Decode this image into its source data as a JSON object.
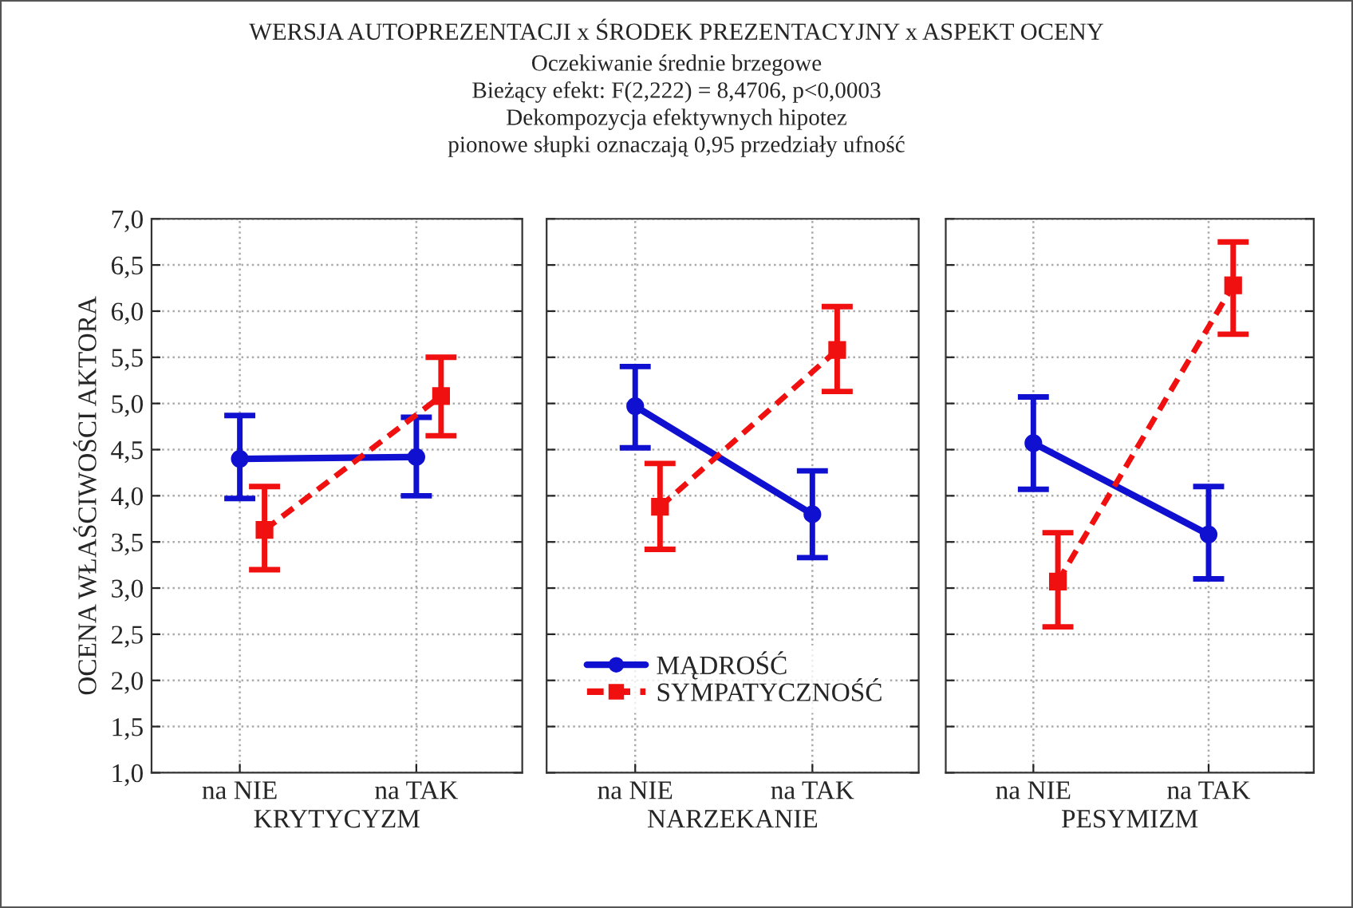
{
  "chart_data": [
    {
      "type": "line",
      "xlabel": "KRYTYCYZM",
      "ylabel": "OCENA WŁAŚCIWOŚCI AKTORA",
      "categories": [
        "na NIE",
        "na TAK"
      ],
      "series": [
        {
          "color": "#1010d0",
          "values": [
            4.4,
            4.42
          ],
          "errors": [
            [
              3.97,
              4.87
            ],
            [
              4.0,
              4.85
            ]
          ],
          "marker": "circle",
          "line_style": "solid"
        },
        {
          "color": "#f01010",
          "values": [
            3.63,
            5.08
          ],
          "errors": [
            [
              3.2,
              4.1
            ],
            [
              4.65,
              5.5
            ]
          ],
          "marker": "square",
          "line_style": "dashed"
        }
      ],
      "ylim": [
        1.0,
        7.0
      ],
      "yticks": [
        {
          "value": 1.0,
          "label": "1,0"
        },
        {
          "value": 1.5,
          "label": "1,5"
        },
        {
          "value": 2.0,
          "label": "2,0"
        },
        {
          "value": 2.5,
          "label": "2,5"
        },
        {
          "value": 3.0,
          "label": "3,0"
        },
        {
          "value": 3.5,
          "label": "3,5"
        },
        {
          "value": 4.0,
          "label": "4,0"
        },
        {
          "value": 4.5,
          "label": "4,5"
        },
        {
          "value": 5.0,
          "label": "5,0"
        },
        {
          "value": 5.5,
          "label": "5,5"
        },
        {
          "value": 6.0,
          "label": "6,0"
        },
        {
          "value": 6.5,
          "label": "6,5"
        },
        {
          "value": 7.0,
          "label": "7,0"
        }
      ],
      "grid": true
    },
    {
      "type": "line",
      "title": "WERSJA AUTOPREZENTACJI x ŚRODEK PREZENTACYJNY x ASPEKT OCENY",
      "subtitle": "Oczekiwanie średnie brzegowe\nBieżący efekt: F(2,222) = 8,4706, p<0,0003\nDekompozycja efektywnych hipotez\npionowe słupki oznaczają 0,95 przedziały ufność",
      "xlabel": "NARZEKANIE",
      "categories": [
        "na NIE",
        "na TAK"
      ],
      "series": [
        {
          "name": "MĄDROŚĆ",
          "color": "#1010d0",
          "values": [
            4.97,
            3.8
          ],
          "errors": [
            [
              4.52,
              5.4
            ],
            [
              3.33,
              4.27
            ]
          ],
          "marker": "circle",
          "line_style": "solid"
        },
        {
          "name": "SYMPATYCZNOŚĆ",
          "color": "#f01010",
          "values": [
            3.88,
            5.58
          ],
          "errors": [
            [
              3.42,
              4.35
            ],
            [
              5.13,
              6.05
            ]
          ],
          "marker": "square",
          "line_style": "dashed"
        }
      ],
      "ylim": [
        1.0,
        7.0
      ],
      "tick_labels": "x",
      "grid": true,
      "legend": "bottom left"
    },
    {
      "type": "line",
      "xlabel": "PESYMIZM",
      "categories": [
        "na NIE",
        "na TAK"
      ],
      "series": [
        {
          "color": "#1010d0",
          "values": [
            4.57,
            3.58
          ],
          "errors": [
            [
              4.07,
              5.07
            ],
            [
              3.1,
              4.1
            ]
          ],
          "marker": "circle",
          "line_style": "solid"
        },
        {
          "color": "#f01010",
          "values": [
            3.07,
            6.28
          ],
          "errors": [
            [
              2.58,
              3.6
            ],
            [
              5.75,
              6.75
            ]
          ],
          "marker": "square",
          "line_style": "dashed"
        }
      ],
      "ylim": [
        1.0,
        7.0
      ],
      "tick_labels": "x",
      "grid": true
    }
  ]
}
